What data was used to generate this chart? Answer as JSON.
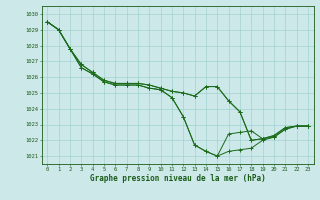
{
  "title": "Graphe pression niveau de la mer (hPa)",
  "background_color": "#cce8e8",
  "line_color": "#1a6b1a",
  "xlim": [
    -0.5,
    23.5
  ],
  "ylim": [
    1020.5,
    1030.5
  ],
  "yticks": [
    1021,
    1022,
    1023,
    1024,
    1025,
    1026,
    1027,
    1028,
    1029,
    1030
  ],
  "xticks": [
    0,
    1,
    2,
    3,
    4,
    5,
    6,
    7,
    8,
    9,
    10,
    11,
    12,
    13,
    14,
    15,
    16,
    17,
    18,
    19,
    20,
    21,
    22,
    23
  ],
  "series": [
    [
      1029.5,
      1029.0,
      1027.8,
      1026.6,
      1026.2,
      1025.7,
      1025.5,
      1025.5,
      1025.5,
      1025.3,
      1025.2,
      1024.7,
      1023.5,
      1021.7,
      1021.3,
      1021.0,
      1021.3,
      1021.4,
      1021.5,
      1022.0,
      1022.2,
      1022.7,
      1022.9,
      1022.9
    ],
    [
      1029.5,
      1029.0,
      1027.8,
      1026.6,
      1026.2,
      1025.7,
      1025.5,
      1025.5,
      1025.5,
      1025.3,
      1025.2,
      1024.7,
      1023.5,
      1021.7,
      1021.3,
      1021.0,
      1022.4,
      1022.5,
      1022.6,
      1022.1,
      1022.2,
      1022.7,
      1022.9,
      1022.9
    ],
    [
      1029.5,
      1029.0,
      1027.8,
      1026.8,
      1026.3,
      1025.8,
      1025.6,
      1025.6,
      1025.6,
      1025.5,
      1025.3,
      1025.1,
      1025.0,
      1024.8,
      1025.4,
      1025.4,
      1024.5,
      1023.8,
      1022.0,
      1022.1,
      1022.3,
      1022.8,
      1022.9,
      1022.9
    ],
    [
      1029.5,
      1029.0,
      1027.8,
      1026.8,
      1026.3,
      1025.8,
      1025.6,
      1025.6,
      1025.6,
      1025.5,
      1025.3,
      1025.1,
      1025.0,
      1024.8,
      1025.4,
      1025.4,
      1024.5,
      1023.8,
      1022.0,
      1022.1,
      1022.3,
      1022.8,
      1022.9,
      1022.9
    ]
  ]
}
